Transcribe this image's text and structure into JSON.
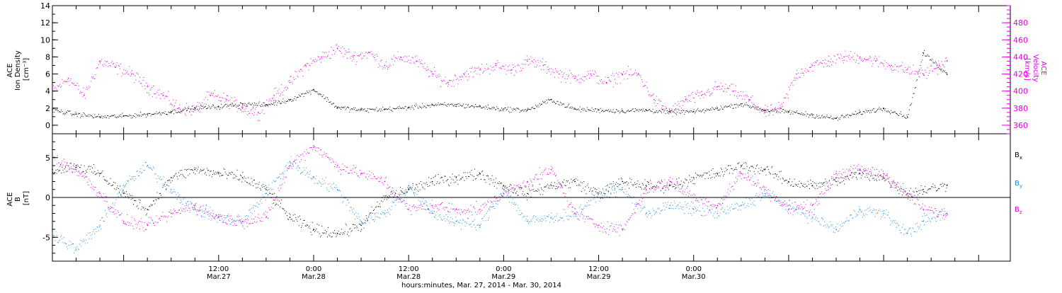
{
  "chart_data": [
    {
      "type": "scatter",
      "panel": "top",
      "left_axis": {
        "label_lines": [
          "ACE",
          "Ion Density",
          "[cm⁻³]"
        ],
        "ylim": [
          -1,
          14
        ],
        "ticks": [
          "0",
          "2",
          "4",
          "6",
          "8",
          "10",
          "12",
          "14"
        ],
        "color": "#000000"
      },
      "right_axis": {
        "label_lines": [
          "ACE",
          "Velocity",
          "[km/s]"
        ],
        "ylim": [
          350,
          500
        ],
        "ticks": [
          "360",
          "380",
          "400",
          "420",
          "440",
          "460",
          "480"
        ],
        "color": "#e000e0"
      },
      "series": [
        {
          "axis": "left",
          "color": "#000000",
          "note": "approximate trend points (hours from Mar.27 00:00)",
          "x": [
            -9,
            -6,
            -3,
            0,
            3,
            6,
            9,
            12,
            15,
            18,
            21,
            24,
            27,
            30,
            33,
            36,
            39,
            42,
            45,
            48,
            51,
            54,
            57,
            60,
            63,
            66,
            69,
            72,
            75,
            78,
            81,
            84,
            87,
            90,
            93,
            96,
            99,
            101,
            104
          ],
          "values": [
            1.8,
            1.3,
            1.0,
            1.1,
            1.3,
            1.6,
            2.0,
            2.2,
            2.5,
            2.4,
            3.0,
            4.2,
            2.1,
            1.8,
            1.9,
            2.1,
            2.4,
            2.4,
            2.2,
            1.9,
            1.8,
            3.0,
            1.9,
            1.8,
            1.7,
            1.8,
            1.6,
            1.6,
            2.0,
            2.5,
            1.8,
            1.6,
            1.2,
            0.8,
            1.5,
            2.0,
            1.0,
            8.5,
            6.0
          ]
        },
        {
          "axis": "right",
          "color": "#e000e0",
          "note": "approximate trend points (hours from Mar.27 00:00)",
          "x": [
            -9,
            -7,
            -5,
            -3,
            -1,
            1,
            3,
            5,
            7,
            9,
            11,
            13,
            15,
            17,
            19,
            21,
            23,
            25,
            27,
            29,
            31,
            33,
            35,
            37,
            39,
            41,
            43,
            45,
            47,
            49,
            51,
            53,
            55,
            57,
            59,
            61,
            63,
            65,
            67,
            69,
            71,
            73,
            75,
            77,
            79,
            81,
            83,
            85,
            87,
            89,
            91,
            93,
            95,
            97,
            99,
            101,
            103,
            104
          ],
          "values": [
            400,
            415,
            395,
            435,
            428,
            420,
            405,
            395,
            380,
            378,
            395,
            390,
            380,
            375,
            395,
            410,
            430,
            440,
            450,
            440,
            445,
            430,
            440,
            435,
            420,
            410,
            420,
            425,
            430,
            425,
            435,
            430,
            420,
            415,
            420,
            410,
            420,
            420,
            390,
            375,
            390,
            395,
            405,
            400,
            390,
            375,
            380,
            420,
            430,
            435,
            440,
            440,
            435,
            430,
            425,
            420,
            430,
            435
          ]
        }
      ]
    },
    {
      "type": "scatter",
      "panel": "bottom",
      "left_axis": {
        "label_lines": [
          "ACE",
          "B",
          "[nT]"
        ],
        "ylim": [
          -8,
          8
        ],
        "ticks": [
          "-5",
          "0",
          "5"
        ],
        "zero_line": true
      },
      "series": [
        {
          "name": "Bx",
          "color": "#000000",
          "note": "approximate trend points (hours from Mar.27 00:00)",
          "x": [
            -9,
            -6,
            -3,
            0,
            3,
            6,
            9,
            12,
            15,
            18,
            21,
            24,
            27,
            30,
            33,
            36,
            39,
            42,
            45,
            48,
            51,
            54,
            57,
            60,
            63,
            66,
            69,
            72,
            75,
            78,
            81,
            84,
            87,
            90,
            93,
            96,
            99,
            101,
            104
          ],
          "values": [
            3.5,
            4.0,
            3.0,
            0.5,
            -1.5,
            2.5,
            3.5,
            3.0,
            2.5,
            1.0,
            -2.5,
            -4.0,
            -4.5,
            -3.5,
            0.0,
            1.0,
            2.0,
            2.5,
            3.0,
            1.5,
            0.5,
            1.5,
            2.0,
            0.5,
            2.0,
            1.5,
            1.5,
            2.5,
            3.0,
            4.0,
            3.5,
            2.0,
            1.5,
            2.0,
            3.0,
            2.5,
            0.5,
            1.0,
            1.5
          ]
        },
        {
          "name": "By",
          "color": "#1e8ce0",
          "note": "approximate trend points (hours from Mar.27 00:00)",
          "x": [
            -9,
            -6,
            -3,
            0,
            3,
            6,
            9,
            12,
            15,
            18,
            21,
            24,
            27,
            30,
            33,
            36,
            39,
            42,
            45,
            48,
            51,
            54,
            57,
            60,
            63,
            66,
            69,
            72,
            75,
            78,
            81,
            84,
            87,
            90,
            93,
            96,
            99,
            101,
            104
          ],
          "values": [
            -4.5,
            -6.5,
            -3.5,
            1.5,
            4.0,
            1.0,
            -1.5,
            -2.5,
            -3.0,
            0.5,
            4.5,
            2.5,
            1.0,
            -3.0,
            -2.0,
            1.5,
            -2.0,
            -3.0,
            -3.5,
            1.0,
            -3.0,
            -2.5,
            -2.0,
            0.5,
            1.0,
            -2.0,
            -1.0,
            -1.5,
            -2.0,
            -1.0,
            0.5,
            -1.0,
            -2.5,
            -4.0,
            -1.5,
            -2.0,
            -4.5,
            -3.0,
            -2.0
          ]
        },
        {
          "name": "Bz",
          "color": "#e000e0",
          "note": "approximate trend points (hours from Mar.27 00:00)",
          "x": [
            -9,
            -6,
            -3,
            0,
            3,
            6,
            9,
            12,
            15,
            18,
            21,
            24,
            27,
            30,
            33,
            36,
            39,
            42,
            45,
            48,
            51,
            54,
            57,
            60,
            63,
            66,
            69,
            72,
            75,
            78,
            81,
            84,
            87,
            90,
            93,
            96,
            99,
            101,
            104
          ],
          "values": [
            5.0,
            3.5,
            0.5,
            -3.0,
            -3.5,
            -2.0,
            -1.0,
            -2.5,
            -3.0,
            -2.5,
            4.0,
            6.5,
            4.0,
            3.0,
            2.0,
            -1.5,
            -1.0,
            -1.5,
            -1.5,
            0.5,
            2.0,
            3.5,
            -2.0,
            -3.5,
            -4.0,
            1.0,
            2.0,
            0.0,
            -1.0,
            3.0,
            1.0,
            -1.5,
            -1.0,
            3.0,
            3.5,
            3.0,
            0.5,
            -1.5,
            -2.0
          ]
        }
      ],
      "legend": [
        {
          "label": "B",
          "sub": "x",
          "color": "#000000"
        },
        {
          "label": "B",
          "sub": "y",
          "color": "#1e8ce0"
        },
        {
          "label": "B",
          "sub": "z",
          "color": "#e000e0"
        }
      ]
    }
  ],
  "x_axis": {
    "xlim_hours": [
      -9,
      112
    ],
    "ticks": [
      {
        "hour": 12,
        "line1": "12:00",
        "line2": "Mar.27"
      },
      {
        "hour": 24,
        "line1": "0:00",
        "line2": "Mar.28"
      },
      {
        "hour": 36,
        "line1": "12:00",
        "line2": "Mar.28"
      },
      {
        "hour": 48,
        "line1": "0:00",
        "line2": "Mar.29"
      },
      {
        "hour": 60,
        "line1": "12:00",
        "line2": "Mar.29"
      },
      {
        "hour": 72,
        "line1": "0:00",
        "line2": "Mar.30"
      }
    ],
    "label": "hours:minutes, Mar. 27, 2014 - Mar. 30, 2014"
  }
}
